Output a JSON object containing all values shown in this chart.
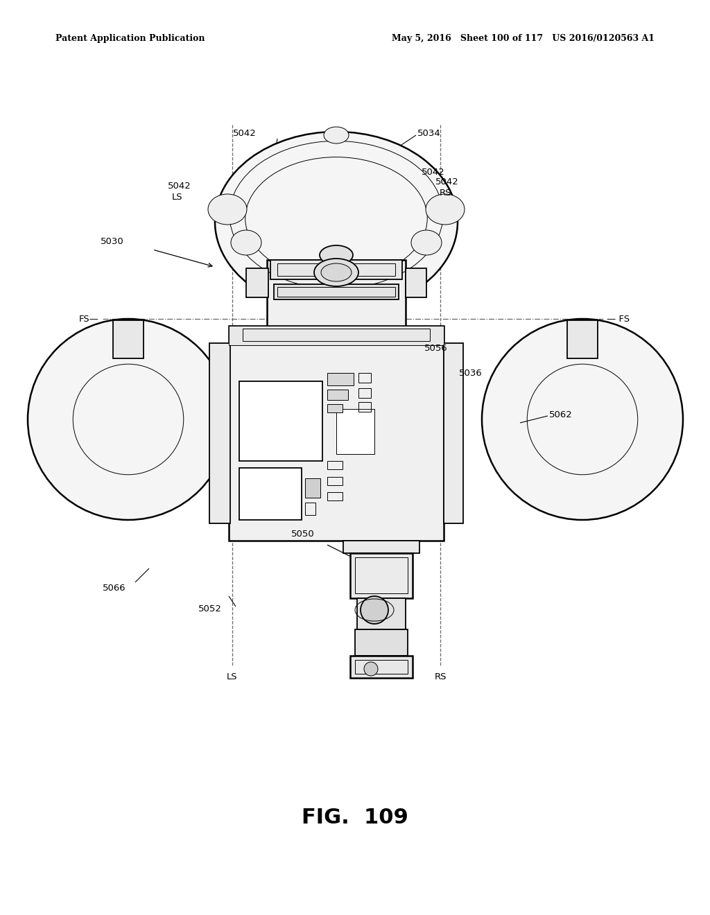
{
  "bg_color": "#ffffff",
  "header_left": "Patent Application Publication",
  "header_right": "May 5, 2016   Sheet 100 of 117   US 2016/0120563 A1",
  "fig_title": "FIG.  109",
  "line_color": "#000000",
  "grey_light": "#f0f0f0",
  "grey_mid": "#e0e0e0",
  "grey_dark": "#cccccc"
}
